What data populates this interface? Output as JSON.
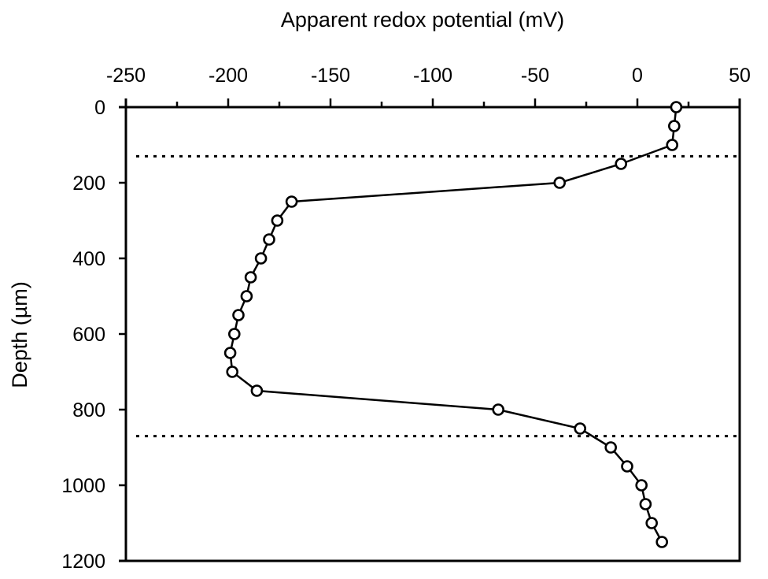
{
  "chart_data": {
    "type": "line",
    "title": "",
    "xlabel": "Apparent redox potential (mV)",
    "ylabel": "Depth (µm)",
    "x_axis_position": "top",
    "y_axis_inverted": true,
    "xlim": [
      -250,
      50
    ],
    "ylim": [
      0,
      1200
    ],
    "x_ticks": [
      -250,
      -200,
      -150,
      -100,
      -50,
      0,
      50
    ],
    "x_tick_labels": [
      "-250",
      "-200",
      "-150",
      "-100",
      "-50",
      "0",
      "50"
    ],
    "x_minor_tick_step": 25,
    "y_ticks": [
      0,
      200,
      400,
      600,
      800,
      1000,
      1200
    ],
    "y_tick_labels": [
      "0",
      "200",
      "400",
      "600",
      "800",
      "1000",
      "1200"
    ],
    "grid": false,
    "legend": null,
    "series": [
      {
        "name": "Apparent redox potential",
        "marker": "open-circle",
        "color": "#000000",
        "points": [
          {
            "depth": 0,
            "mv": 19
          },
          {
            "depth": 50,
            "mv": 18
          },
          {
            "depth": 100,
            "mv": 17
          },
          {
            "depth": 150,
            "mv": -8
          },
          {
            "depth": 200,
            "mv": -38
          },
          {
            "depth": 250,
            "mv": -169
          },
          {
            "depth": 300,
            "mv": -176
          },
          {
            "depth": 350,
            "mv": -180
          },
          {
            "depth": 400,
            "mv": -184
          },
          {
            "depth": 450,
            "mv": -189
          },
          {
            "depth": 500,
            "mv": -191
          },
          {
            "depth": 550,
            "mv": -195
          },
          {
            "depth": 600,
            "mv": -197
          },
          {
            "depth": 650,
            "mv": -199
          },
          {
            "depth": 700,
            "mv": -198
          },
          {
            "depth": 750,
            "mv": -186
          },
          {
            "depth": 800,
            "mv": -68
          },
          {
            "depth": 850,
            "mv": -28
          },
          {
            "depth": 900,
            "mv": -13
          },
          {
            "depth": 950,
            "mv": -5
          },
          {
            "depth": 1000,
            "mv": 2
          },
          {
            "depth": 1050,
            "mv": 4
          },
          {
            "depth": 1100,
            "mv": 7
          },
          {
            "depth": 1150,
            "mv": 12
          }
        ]
      }
    ],
    "annotations": [
      {
        "type": "horizontal-dotted-line",
        "depth": 130,
        "label": ""
      },
      {
        "type": "horizontal-dotted-line",
        "depth": 870,
        "label": ""
      }
    ]
  }
}
